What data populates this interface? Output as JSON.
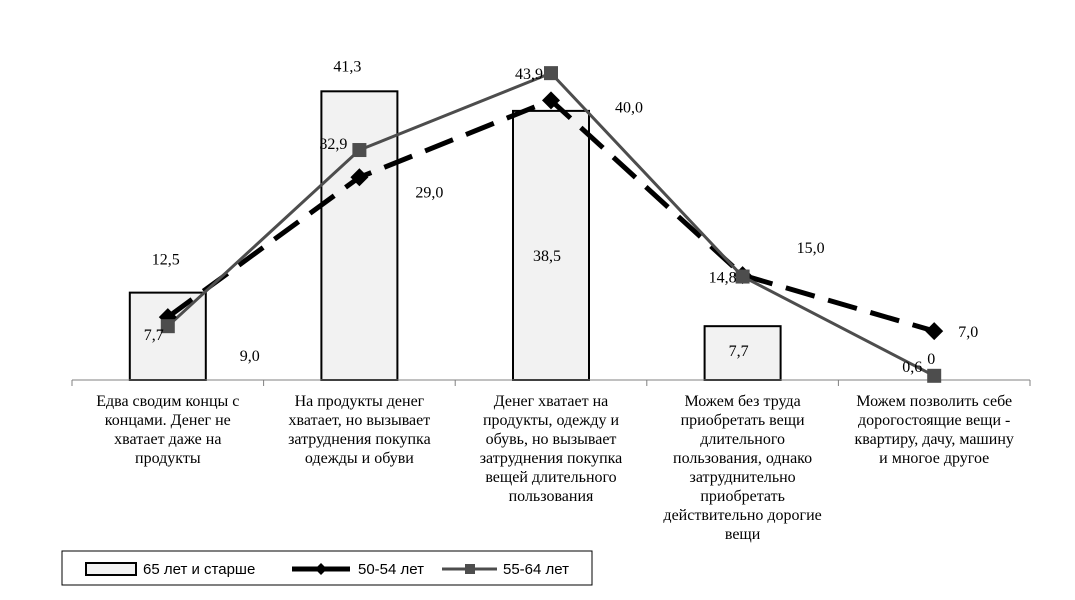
{
  "chart_data": {
    "type": "bar",
    "categories": [
      [
        "Едва сводим концы с",
        "концами. Денег не",
        "хватает даже на",
        "продукты"
      ],
      [
        "На продукты денег",
        "хватает, но вызывает",
        "затруднения покупка",
        "одежды и обуви"
      ],
      [
        "Денег хватает на",
        "продукты, одежду и",
        "обувь, но вызывает",
        "затруднения покупка",
        "вещей длительного",
        "пользования"
      ],
      [
        "Можем без труда",
        "приобретать вещи",
        "длительного",
        "пользования, однако",
        "затруднительно",
        "приобретать",
        "действительно дорогие",
        "вещи"
      ],
      [
        "Можем позволить себе",
        "дорогостоящие вещи -",
        "квартиру, дачу, машину",
        "и многое другое"
      ]
    ],
    "series": [
      {
        "name": "65 лет и старше",
        "kind": "bar",
        "values": [
          12.5,
          41.3,
          38.5,
          7.7,
          0
        ],
        "labels": [
          "12,5",
          "41,3",
          "38,5",
          "7,7",
          "0"
        ],
        "fill": "#f2f2f2",
        "stroke": "#000000"
      },
      {
        "name": "50-54 лет",
        "kind": "line",
        "style": "dashed",
        "marker": "diamond",
        "values": [
          9.0,
          29.0,
          40.0,
          15.0,
          7.0
        ],
        "labels": [
          "9,0",
          "29,0",
          "40,0",
          "15,0",
          "7,0"
        ],
        "color": "#000000"
      },
      {
        "name": "55-64 лет",
        "kind": "line",
        "style": "solid",
        "marker": "square",
        "values": [
          7.7,
          32.9,
          43.9,
          14.8,
          0.6
        ],
        "labels": [
          "7,7",
          "32,9",
          "43,9",
          "14,8",
          "0,6"
        ],
        "color": "#4d4d4d"
      }
    ],
    "ylim": [
      0,
      45
    ],
    "grid": false,
    "legend_position": "bottom-left"
  }
}
